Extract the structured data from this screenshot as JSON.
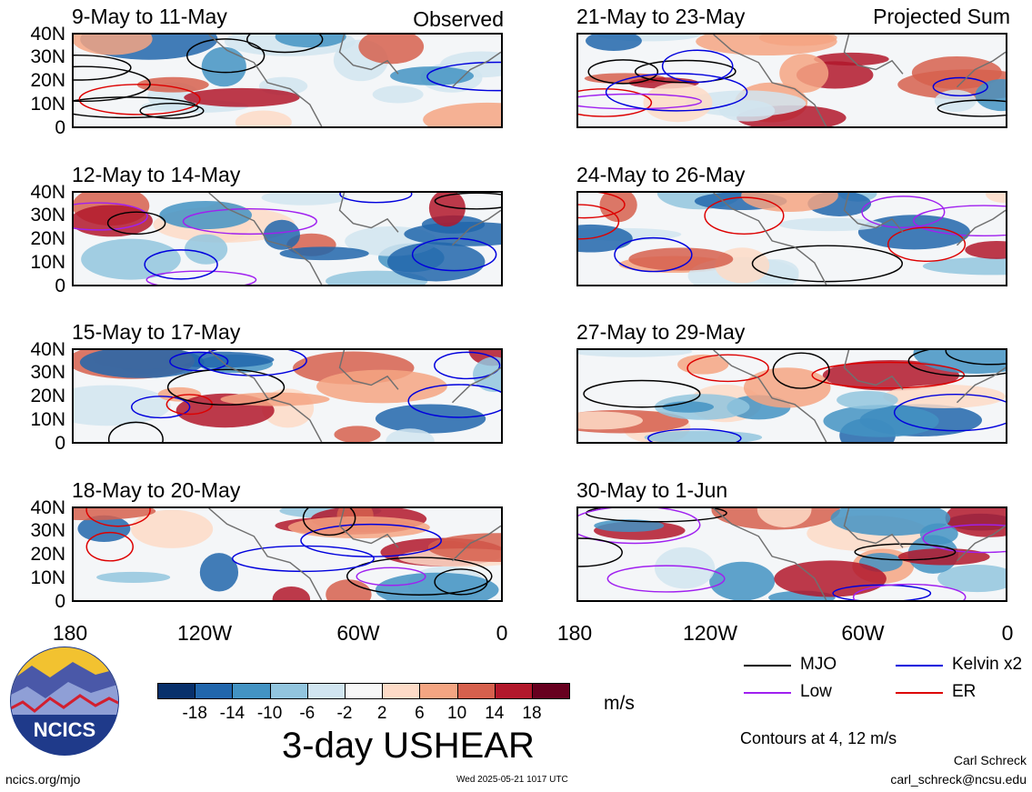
{
  "panels": [
    {
      "title": "9-May to 11-May",
      "tag": "Observed"
    },
    {
      "title": "21-May to 23-May",
      "tag": "Projected Sum"
    },
    {
      "title": "12-May to 14-May",
      "tag": ""
    },
    {
      "title": "24-May to 26-May",
      "tag": ""
    },
    {
      "title": "15-May to 17-May",
      "tag": ""
    },
    {
      "title": "27-May to 29-May",
      "tag": ""
    },
    {
      "title": "18-May to 20-May",
      "tag": ""
    },
    {
      "title": "30-May to 1-Jun",
      "tag": ""
    }
  ],
  "yticks": [
    "40N",
    "30N",
    "20N",
    "10N",
    "0"
  ],
  "xticks": [
    "180",
    "120W",
    "60W",
    "0"
  ],
  "colorbar": {
    "labels": [
      "-18",
      "-14",
      "-10",
      "-6",
      "-2",
      "2",
      "6",
      "10",
      "14",
      "18"
    ],
    "colors": [
      "#08306b",
      "#2166ac",
      "#4393c3",
      "#92c5de",
      "#d1e5f0",
      "#f7f7f7",
      "#fddbc7",
      "#f4a582",
      "#d6604d",
      "#b2182b",
      "#67001f"
    ],
    "unit": "m/s",
    "title": "3-day USHEAR"
  },
  "legend": [
    {
      "label": "MJO",
      "color": "#000000"
    },
    {
      "label": "Kelvin x2",
      "color": "#0000dd"
    },
    {
      "label": "Low",
      "color": "#a020f0"
    },
    {
      "label": "ER",
      "color": "#dd0000"
    }
  ],
  "contour_note": "Contours at 4, 12 m/s",
  "author": "Carl Schreck",
  "email": "carl_schreck@ncsu.edu",
  "website": "ncics.org/mjo",
  "timestamp": "Wed 2025-05-21 1017 UTC",
  "logo_text": "NCICS"
}
